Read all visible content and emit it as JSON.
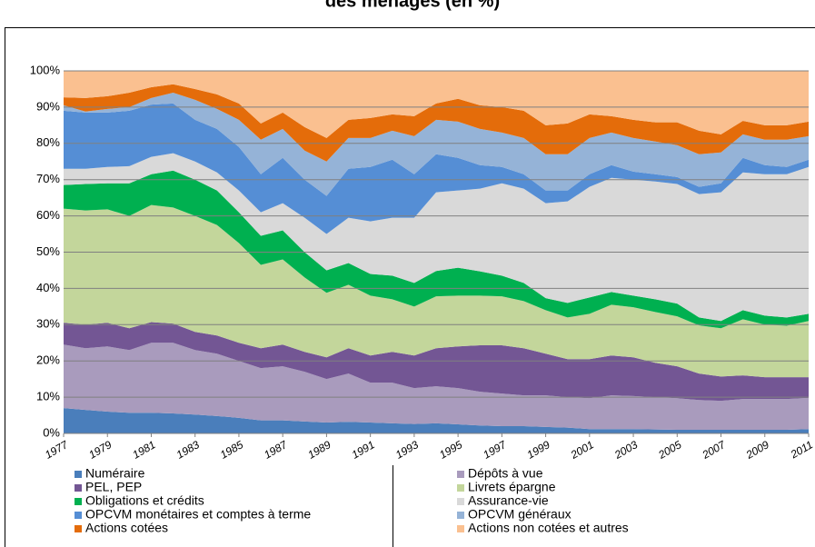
{
  "chart_data": {
    "type": "stacked_area_100",
    "title": "des ménages (en %)",
    "x": [
      1977,
      1978,
      1979,
      1980,
      1981,
      1982,
      1983,
      1984,
      1985,
      1986,
      1987,
      1988,
      1989,
      1990,
      1991,
      1992,
      1993,
      1994,
      1995,
      1996,
      1997,
      1998,
      1999,
      2000,
      2001,
      2002,
      2003,
      2004,
      2005,
      2006,
      2007,
      2008,
      2009,
      2010,
      2011
    ],
    "xlim": [
      1977,
      2011
    ],
    "xticks": [
      1977,
      1979,
      1981,
      1983,
      1985,
      1987,
      1989,
      1991,
      1993,
      1995,
      1997,
      1999,
      2001,
      2003,
      2005,
      2007,
      2009,
      2011
    ],
    "ylim": [
      0,
      100
    ],
    "yticks": [
      {
        "value": 0,
        "label": "0%"
      },
      {
        "value": 10,
        "label": "10%"
      },
      {
        "value": 20,
        "label": "20%"
      },
      {
        "value": 30,
        "label": "30%"
      },
      {
        "value": 40,
        "label": "40%"
      },
      {
        "value": 50,
        "label": "50%"
      },
      {
        "value": 60,
        "label": "60%"
      },
      {
        "value": 70,
        "label": "70%"
      },
      {
        "value": 80,
        "label": "80%"
      },
      {
        "value": 90,
        "label": "90%"
      },
      {
        "value": 100,
        "label": "100%"
      }
    ],
    "grid": true,
    "series": [
      {
        "name": "Numéraire",
        "color": "#4a7ebb",
        "values": [
          7,
          6.5,
          6,
          5.7,
          5.7,
          5.5,
          5.2,
          4.8,
          4.3,
          3.6,
          3.6,
          3.3,
          3,
          3.2,
          3,
          2.8,
          2.6,
          2.8,
          2.5,
          2.2,
          2,
          2,
          1.8,
          1.6,
          1.2,
          1.2,
          1.2,
          1.1,
          1,
          1,
          1,
          1,
          1,
          1,
          1.2
        ]
      },
      {
        "name": "Dépôts à vue",
        "color": "#a99bbd",
        "values": [
          17.5,
          17,
          18,
          17.3,
          19.3,
          19.5,
          17.8,
          17.2,
          15.7,
          14.4,
          14.9,
          13.7,
          12,
          13.3,
          11,
          11.2,
          9.9,
          10.2,
          10,
          9.3,
          9,
          8.5,
          8.7,
          8.4,
          8.5,
          9.3,
          9.1,
          8.9,
          8.7,
          8.2,
          8,
          8.5,
          8.5,
          8.5,
          8.6
        ]
      },
      {
        "name": "PEL, PEP",
        "color": "#735694",
        "values": [
          6,
          6.5,
          6.5,
          6,
          5.7,
          5.3,
          5,
          5,
          5,
          5.5,
          6,
          5.5,
          6,
          7,
          7.5,
          8.5,
          9,
          10.5,
          11.5,
          12.8,
          13.3,
          13,
          11.5,
          10.5,
          10.8,
          11,
          10.7,
          9.5,
          8.8,
          7.3,
          6.7,
          6.5,
          6,
          6,
          5.7
        ]
      },
      {
        "name": "Livrets épargne",
        "color": "#c3d69b",
        "values": [
          31.5,
          31.5,
          31.3,
          31,
          32.3,
          32,
          32,
          30.5,
          27.5,
          23,
          23.5,
          20.5,
          17.8,
          17.5,
          16.5,
          14.5,
          13.5,
          14.3,
          14,
          13.7,
          13.5,
          13,
          12,
          11.5,
          12.5,
          14,
          13.8,
          14,
          13.8,
          13.3,
          13.3,
          15.5,
          14.5,
          14.2,
          15.5
        ]
      },
      {
        "name": "Obligations et crédits",
        "color": "#00b050",
        "values": [
          6.5,
          7.3,
          7.2,
          9,
          8.5,
          10.2,
          10,
          9.5,
          8.5,
          8,
          8,
          7,
          6.2,
          6,
          6,
          6.5,
          6.5,
          7,
          7.7,
          6.7,
          5.7,
          5,
          3.3,
          4,
          4.5,
          3.5,
          3.2,
          3.5,
          3.5,
          2.2,
          2,
          2.5,
          2.5,
          2.3,
          2
        ]
      },
      {
        "name": "Assurance-vie",
        "color": "#d9d9d9",
        "values": [
          4.5,
          4.2,
          4.5,
          4.7,
          4.8,
          4.8,
          5,
          5,
          6,
          6.5,
          7.5,
          9.5,
          10,
          12.5,
          14.5,
          16,
          18,
          21.7,
          21.3,
          22.8,
          25.5,
          26,
          26.2,
          28,
          30.5,
          31.5,
          32,
          32.5,
          33,
          34,
          35.5,
          38,
          39,
          39.5,
          40.5
        ]
      },
      {
        "name": "OPCVM monétaires et comptes à terme",
        "color": "#558ed5",
        "values": [
          16,
          15.5,
          15,
          15.3,
          14.4,
          13.7,
          11.5,
          12,
          12,
          10.5,
          12.5,
          10.5,
          10.5,
          13.5,
          15,
          16,
          12,
          10.5,
          9,
          6.5,
          4.5,
          4,
          3.5,
          3,
          3.5,
          3.5,
          2.2,
          2,
          1.9,
          2,
          2.5,
          4,
          2.5,
          2,
          2
        ]
      },
      {
        "name": "OPCVM généraux",
        "color": "#95b3d7",
        "values": [
          1.5,
          0.3,
          1,
          1,
          1.8,
          3,
          5.5,
          5.5,
          7.5,
          9.5,
          8,
          8,
          9.5,
          8.5,
          8,
          8,
          10.5,
          9.5,
          10,
          10,
          9.5,
          10,
          10,
          10,
          10,
          9,
          9.3,
          9,
          8.8,
          9,
          8.5,
          6.5,
          7,
          7.5,
          6.5
        ]
      },
      {
        "name": "Actions cotées",
        "color": "#e46c0a",
        "values": [
          2.2,
          3.7,
          3.5,
          4,
          3,
          2.3,
          3,
          4,
          4.5,
          4.5,
          4.5,
          6.5,
          6.5,
          5,
          5.5,
          4.5,
          5.5,
          4.5,
          6.3,
          6.5,
          7,
          7.5,
          8,
          8.5,
          6.5,
          4.5,
          5,
          5.3,
          6.3,
          6.5,
          5,
          3.7,
          4,
          4,
          4
        ]
      },
      {
        "name": "Actions non cotées et autres",
        "color": "#fac090",
        "values": [
          7.3,
          7.5,
          7,
          6,
          4.5,
          3.7,
          5,
          6.5,
          9,
          14.5,
          11.5,
          15.5,
          18.5,
          13.5,
          13,
          12,
          12.5,
          9,
          7.7,
          9.5,
          10,
          11,
          15,
          14.5,
          12,
          12.5,
          13.5,
          14.2,
          14.2,
          16.5,
          17.5,
          13.8,
          15,
          15,
          14
        ]
      }
    ]
  }
}
